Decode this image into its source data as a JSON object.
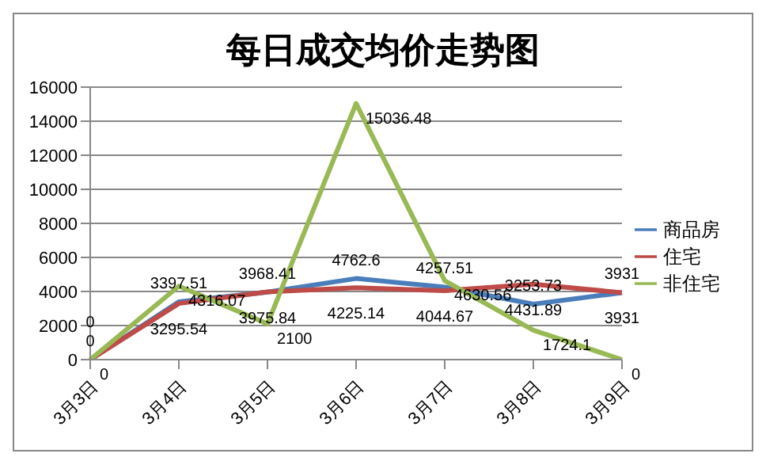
{
  "chart_data": {
    "type": "line",
    "title": "每日成交均价走势图",
    "categories": [
      "3月3日",
      "3月4日",
      "3月5日",
      "3月6日",
      "3月7日",
      "3月8日",
      "3月9日"
    ],
    "series": [
      {
        "name": "商品房",
        "color": "#4a7ebb",
        "values": [
          0,
          3397.51,
          3968.41,
          4762.6,
          4257.51,
          3253.73,
          3931
        ]
      },
      {
        "name": "住宅",
        "color": "#be4b48",
        "values": [
          0,
          3295.54,
          3975.84,
          4225.14,
          4044.67,
          4431.89,
          3931
        ]
      },
      {
        "name": "非住宅",
        "color": "#98b954",
        "values": [
          0,
          4316.07,
          2100,
          15036.48,
          4630.56,
          1724.1,
          0
        ]
      }
    ],
    "ylim": [
      0,
      16000
    ],
    "yticks": [
      0,
      2000,
      4000,
      6000,
      8000,
      10000,
      12000,
      14000,
      16000
    ],
    "grid": "y",
    "legend": "right",
    "data_labels": true,
    "marker": "none"
  }
}
